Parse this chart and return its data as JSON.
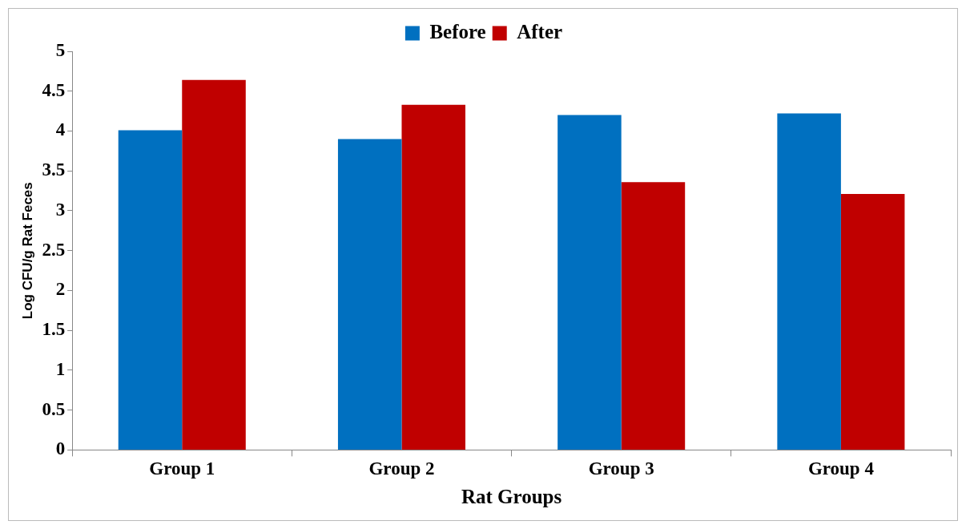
{
  "chart_data": {
    "type": "bar",
    "categories": [
      "Group 1",
      "Group 2",
      "Group 3",
      "Group 4"
    ],
    "series": [
      {
        "name": "Before",
        "color": "#0070c0",
        "values": [
          4.01,
          3.9,
          4.2,
          4.22
        ]
      },
      {
        "name": "After",
        "color": "#c00000",
        "values": [
          4.64,
          4.33,
          3.36,
          3.21
        ]
      }
    ],
    "xlabel": "Rat Groups",
    "ylabel": "Log CFU/g Rat Feces",
    "ylim": [
      0,
      5
    ],
    "yticks": [
      0,
      0.5,
      1,
      1.5,
      2,
      2.5,
      3,
      3.5,
      4,
      4.5,
      5
    ],
    "grid": false,
    "legend": "top"
  }
}
